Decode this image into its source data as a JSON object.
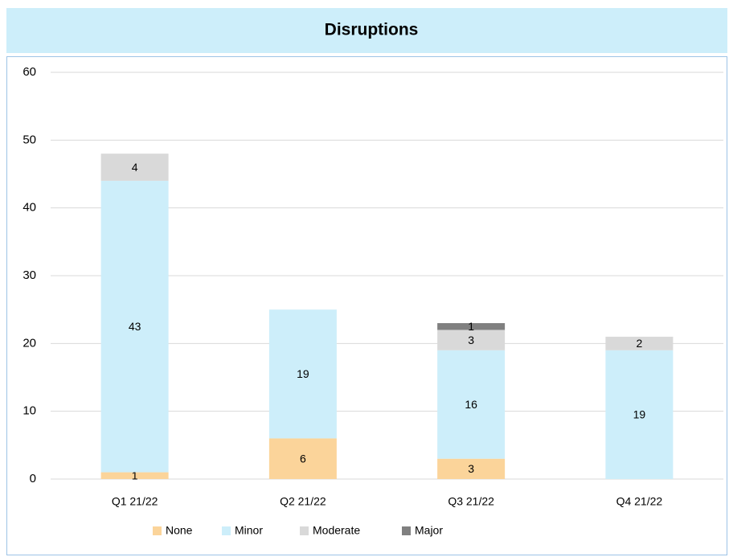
{
  "chart_data": {
    "type": "stacked_bar",
    "title": "Disruptions",
    "categories": [
      "Q1 21/22",
      "Q2 21/22",
      "Q3 21/22",
      "Q4 21/22"
    ],
    "series": [
      {
        "name": "None",
        "color": "#fbd49a",
        "values": [
          1,
          6,
          3,
          null
        ]
      },
      {
        "name": "Minor",
        "color": "#cdeefa",
        "values": [
          43,
          19,
          16,
          19
        ]
      },
      {
        "name": "Moderate",
        "color": "#d9d9d9",
        "values": [
          4,
          null,
          3,
          2
        ]
      },
      {
        "name": "Major",
        "color": "#808080",
        "values": [
          null,
          null,
          1,
          null
        ]
      }
    ],
    "ylim": [
      0,
      60
    ],
    "yticks": [
      0,
      10,
      20,
      30,
      40,
      50,
      60
    ],
    "grid": true,
    "legend": "bottom"
  }
}
